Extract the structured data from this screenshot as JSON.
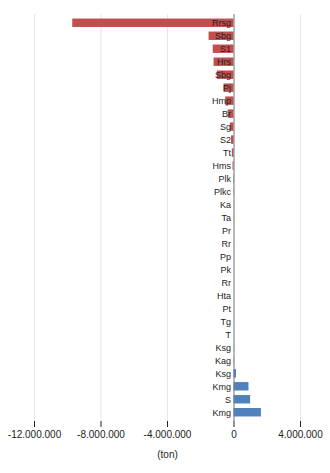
{
  "chart_data": {
    "type": "bar",
    "orientation": "horizontal",
    "categories": [
      "Rrsg",
      "Sbg",
      "S1",
      "Hrs",
      "Sbg",
      "Pj",
      "Hmp",
      "Br",
      "Sg",
      "S2",
      "Tt",
      "Hms",
      "Plk",
      "Plkc",
      "Ka",
      "Ta",
      "Pr",
      "Rr",
      "Pp",
      "Pk",
      "Rr",
      "Hta",
      "Pt",
      "Tg",
      "T",
      "Ksg",
      "Kag",
      "Ksg",
      "Kmg",
      "S",
      "Kmg"
    ],
    "values": [
      -9700000,
      -1500000,
      -1250000,
      -1200000,
      -1000000,
      -600000,
      -500000,
      -350000,
      -220000,
      -150000,
      -100000,
      -60000,
      -30000,
      -20000,
      -10000,
      -10000,
      -5000,
      -5000,
      -5000,
      0,
      0,
      0,
      0,
      0,
      0,
      10000,
      20000,
      150000,
      900000,
      1000000,
      1650000
    ],
    "colors": [
      "#c0504d",
      "#c0504d",
      "#c0504d",
      "#c0504d",
      "#c0504d",
      "#c0504d",
      "#c0504d",
      "#c0504d",
      "#c0504d",
      "#c0504d",
      "#c0504d",
      "#c0504d",
      "#c0504d",
      "#c0504d",
      "#c0504d",
      "#c0504d",
      "#c0504d",
      "#c0504d",
      "#c0504d",
      "#4f81bd",
      "#4f81bd",
      "#4f81bd",
      "#4f81bd",
      "#4f81bd",
      "#4f81bd",
      "#4f81bd",
      "#4f81bd",
      "#4f81bd",
      "#4f81bd",
      "#4f81bd",
      "#4f81bd"
    ],
    "xlim": [
      -12000000,
      4000000
    ],
    "xticks": [
      {
        "value": -12000000,
        "label": "-12.000.000"
      },
      {
        "value": -8000000,
        "label": "-8.000.000"
      },
      {
        "value": -4000000,
        "label": "-4.000.000"
      },
      0,
      {
        "value": 4000000,
        "label": "4.000.000"
      }
    ],
    "xlabel": "(ton)",
    "grid": true
  }
}
